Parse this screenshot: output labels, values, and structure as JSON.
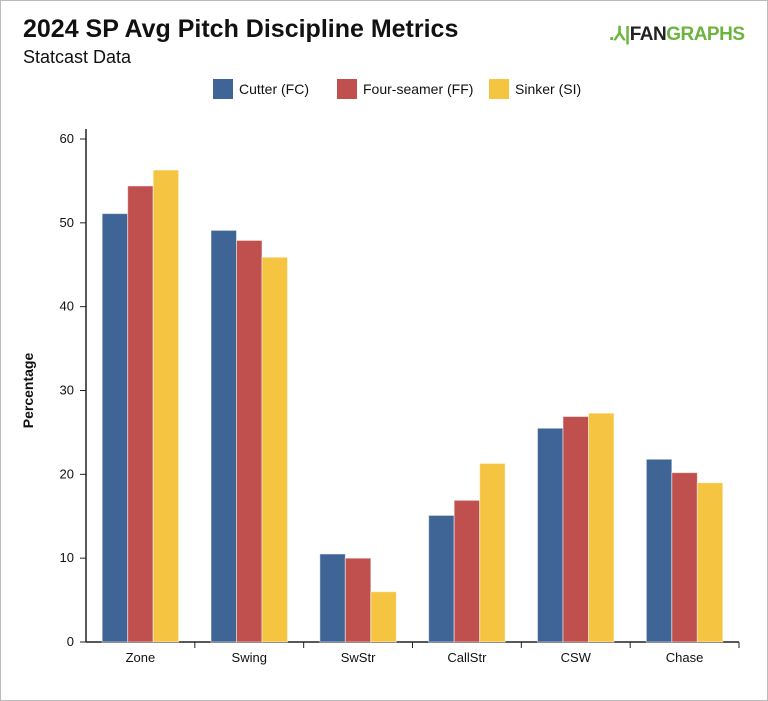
{
  "header": {
    "title": "2024 SP Avg Pitch Discipline Metrics",
    "subtitle": "Statcast Data",
    "logo": "FANGRAPHS"
  },
  "chart_data": {
    "type": "bar",
    "title": "2024 SP Avg Pitch Discipline Metrics",
    "subtitle": "Statcast Data",
    "xlabel": "",
    "ylabel": "Percentage",
    "ylim": [
      0,
      60
    ],
    "yticks": [
      0,
      10,
      20,
      30,
      40,
      50,
      60
    ],
    "grid": false,
    "legend": "top",
    "categories": [
      "Zone",
      "Swing",
      "SwStr",
      "CallStr",
      "CSW",
      "Chase"
    ],
    "series": [
      {
        "name": "Cutter (FC)",
        "color": "#3f6496",
        "values": [
          51.1,
          49.1,
          10.5,
          15.1,
          25.5,
          21.8
        ]
      },
      {
        "name": "Four-seamer (FF)",
        "color": "#c0504d",
        "values": [
          54.4,
          47.9,
          10.0,
          16.9,
          26.9,
          20.2
        ]
      },
      {
        "name": "Sinker (SI)",
        "color": "#f5c542",
        "values": [
          56.3,
          45.9,
          6.0,
          21.3,
          27.3,
          19.0
        ]
      }
    ]
  }
}
